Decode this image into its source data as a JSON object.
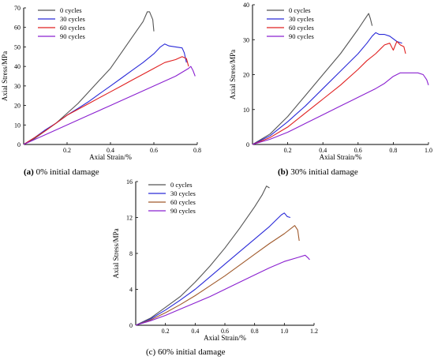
{
  "chart_data": [
    {
      "type": "line",
      "caption_letter": "(a)",
      "caption_text": " 0% initial damage",
      "xlabel": "Axial Strain/%",
      "ylabel": "Axial Stress/MPa",
      "xlim": [
        0,
        0.8
      ],
      "ylim": [
        0,
        70
      ],
      "xticks": [
        0.2,
        0.4,
        0.6,
        0.8
      ],
      "xtick_labels": [
        "0.2",
        "0.4",
        "0.6",
        "0.8"
      ],
      "yticks": [
        0,
        10,
        20,
        30,
        40,
        50,
        60,
        70
      ],
      "ytick_labels": [
        "0",
        "10",
        "20",
        "30",
        "40",
        "50",
        "60",
        "70"
      ],
      "legend_position": "top-left",
      "series": [
        {
          "name": "0 cycles",
          "color": "#555555",
          "points": [
            [
              0,
              0
            ],
            [
              0.05,
              3
            ],
            [
              0.1,
              7
            ],
            [
              0.15,
              11
            ],
            [
              0.2,
              16
            ],
            [
              0.25,
              21
            ],
            [
              0.3,
              27
            ],
            [
              0.35,
              33
            ],
            [
              0.4,
              39
            ],
            [
              0.45,
              47
            ],
            [
              0.5,
              55
            ],
            [
              0.55,
              63
            ],
            [
              0.57,
              68
            ],
            [
              0.58,
              68
            ],
            [
              0.595,
              64
            ],
            [
              0.6,
              58
            ]
          ]
        },
        {
          "name": "30 cycles",
          "color": "#2a2ad8",
          "points": [
            [
              0,
              0
            ],
            [
              0.05,
              3.5
            ],
            [
              0.1,
              7.5
            ],
            [
              0.15,
              11
            ],
            [
              0.2,
              15
            ],
            [
              0.25,
              18.5
            ],
            [
              0.3,
              22
            ],
            [
              0.35,
              26
            ],
            [
              0.4,
              30
            ],
            [
              0.45,
              34
            ],
            [
              0.5,
              38
            ],
            [
              0.55,
              42
            ],
            [
              0.6,
              46.5
            ],
            [
              0.63,
              50
            ],
            [
              0.65,
              51.5
            ],
            [
              0.67,
              50.5
            ],
            [
              0.7,
              50
            ],
            [
              0.73,
              49.5
            ],
            [
              0.74,
              47
            ],
            [
              0.75,
              42
            ]
          ]
        },
        {
          "name": "60 cycles",
          "color": "#e02020",
          "points": [
            [
              0,
              0
            ],
            [
              0.05,
              3.5
            ],
            [
              0.1,
              7
            ],
            [
              0.15,
              11
            ],
            [
              0.2,
              15
            ],
            [
              0.25,
              18
            ],
            [
              0.3,
              21
            ],
            [
              0.35,
              24
            ],
            [
              0.4,
              27
            ],
            [
              0.45,
              30
            ],
            [
              0.5,
              33
            ],
            [
              0.55,
              36
            ],
            [
              0.6,
              39
            ],
            [
              0.65,
              42
            ],
            [
              0.7,
              43.5
            ],
            [
              0.72,
              44.5
            ],
            [
              0.73,
              45
            ],
            [
              0.75,
              44
            ],
            [
              0.76,
              40
            ]
          ]
        },
        {
          "name": "90 cycles",
          "color": "#8a20d0",
          "points": [
            [
              0,
              0
            ],
            [
              0.05,
              2.5
            ],
            [
              0.1,
              5
            ],
            [
              0.2,
              10
            ],
            [
              0.3,
              15
            ],
            [
              0.4,
              20
            ],
            [
              0.5,
              25
            ],
            [
              0.6,
              30
            ],
            [
              0.7,
              35
            ],
            [
              0.76,
              39
            ],
            [
              0.77,
              40
            ],
            [
              0.78,
              38
            ],
            [
              0.79,
              35
            ]
          ]
        }
      ]
    },
    {
      "type": "line",
      "caption_letter": "(b)",
      "caption_text": " 30% initial damage",
      "xlabel": "Axial Strain/%",
      "ylabel": "Axial Stress/MPa",
      "xlim": [
        0,
        1.0
      ],
      "ylim": [
        0,
        40
      ],
      "xticks": [
        0.2,
        0.4,
        0.6,
        0.8,
        1.0
      ],
      "xtick_labels": [
        "0.2",
        "0.4",
        "0.6",
        "0.8",
        "1.0"
      ],
      "yticks": [
        0,
        10,
        20,
        30,
        40
      ],
      "ytick_labels": [
        "0",
        "10",
        "20",
        "30",
        "40"
      ],
      "legend_position": "top-left",
      "series": [
        {
          "name": "0 cycles",
          "color": "#555555",
          "points": [
            [
              0,
              0
            ],
            [
              0.1,
              3
            ],
            [
              0.2,
              8
            ],
            [
              0.3,
              14
            ],
            [
              0.4,
              20
            ],
            [
              0.5,
              26
            ],
            [
              0.6,
              33
            ],
            [
              0.64,
              36
            ],
            [
              0.66,
              37.5
            ],
            [
              0.67,
              36
            ],
            [
              0.68,
              34
            ]
          ]
        },
        {
          "name": "30 cycles",
          "color": "#2a2ad8",
          "points": [
            [
              0,
              0
            ],
            [
              0.1,
              2.5
            ],
            [
              0.2,
              6.5
            ],
            [
              0.3,
              11
            ],
            [
              0.4,
              16
            ],
            [
              0.5,
              21
            ],
            [
              0.6,
              26
            ],
            [
              0.65,
              29
            ],
            [
              0.68,
              31
            ],
            [
              0.7,
              32
            ],
            [
              0.72,
              31.5
            ],
            [
              0.75,
              31.5
            ],
            [
              0.78,
              31
            ],
            [
              0.82,
              29.5
            ],
            [
              0.85,
              29
            ]
          ]
        },
        {
          "name": "60 cycles",
          "color": "#e02020",
          "points": [
            [
              0,
              0
            ],
            [
              0.1,
              2
            ],
            [
              0.2,
              5
            ],
            [
              0.3,
              9
            ],
            [
              0.4,
              13
            ],
            [
              0.5,
              17
            ],
            [
              0.6,
              21.5
            ],
            [
              0.65,
              24
            ],
            [
              0.7,
              26
            ],
            [
              0.73,
              27.5
            ],
            [
              0.75,
              28.5
            ],
            [
              0.78,
              29
            ],
            [
              0.8,
              27
            ],
            [
              0.82,
              29.5
            ],
            [
              0.84,
              28.5
            ],
            [
              0.86,
              28
            ],
            [
              0.87,
              26
            ]
          ]
        },
        {
          "name": "90 cycles",
          "color": "#8a20d0",
          "points": [
            [
              0,
              0
            ],
            [
              0.1,
              1.5
            ],
            [
              0.2,
              3.5
            ],
            [
              0.3,
              6
            ],
            [
              0.4,
              8.5
            ],
            [
              0.5,
              11
            ],
            [
              0.6,
              13.5
            ],
            [
              0.7,
              16
            ],
            [
              0.75,
              17.5
            ],
            [
              0.8,
              19.5
            ],
            [
              0.84,
              20.5
            ],
            [
              0.88,
              20.5
            ],
            [
              0.94,
              20.5
            ],
            [
              0.97,
              20
            ],
            [
              0.99,
              18.5
            ],
            [
              1.0,
              17
            ]
          ]
        }
      ]
    },
    {
      "type": "line",
      "caption_letter": "",
      "caption_text": "(c) 60% initial damage",
      "xlabel": "Axial Strain/%",
      "ylabel": "Axial Stress/MPa",
      "xlim": [
        0,
        1.2
      ],
      "ylim": [
        0,
        16
      ],
      "xticks": [
        0.2,
        0.4,
        0.6,
        0.8,
        1.0,
        1.2
      ],
      "xtick_labels": [
        "0.2",
        "0.4",
        "0.6",
        "0.8",
        "1.0",
        "1.2"
      ],
      "yticks": [
        0,
        4,
        8,
        12,
        16
      ],
      "ytick_labels": [
        "0",
        "4",
        "8",
        "12",
        "16"
      ],
      "legend_position": "top-left",
      "series": [
        {
          "name": "0 cycles",
          "color": "#555555",
          "points": [
            [
              0,
              0
            ],
            [
              0.1,
              0.8
            ],
            [
              0.2,
              2
            ],
            [
              0.3,
              3.2
            ],
            [
              0.4,
              4.8
            ],
            [
              0.5,
              6.6
            ],
            [
              0.6,
              8.6
            ],
            [
              0.7,
              10.8
            ],
            [
              0.8,
              13.2
            ],
            [
              0.85,
              14.5
            ],
            [
              0.88,
              15.5
            ],
            [
              0.9,
              15.3
            ]
          ]
        },
        {
          "name": "30 cycles",
          "color": "#2a2ad8",
          "points": [
            [
              0,
              0
            ],
            [
              0.1,
              0.7
            ],
            [
              0.2,
              1.7
            ],
            [
              0.3,
              2.8
            ],
            [
              0.4,
              4
            ],
            [
              0.5,
              5.4
            ],
            [
              0.6,
              6.8
            ],
            [
              0.7,
              8.2
            ],
            [
              0.8,
              9.6
            ],
            [
              0.9,
              11
            ],
            [
              0.98,
              12.3
            ],
            [
              1.0,
              12.5
            ],
            [
              1.02,
              12.1
            ],
            [
              1.04,
              12
            ]
          ]
        },
        {
          "name": "60 cycles",
          "color": "#a05a2c",
          "points": [
            [
              0,
              0
            ],
            [
              0.1,
              0.6
            ],
            [
              0.2,
              1.4
            ],
            [
              0.3,
              2.3
            ],
            [
              0.4,
              3.3
            ],
            [
              0.5,
              4.4
            ],
            [
              0.6,
              5.5
            ],
            [
              0.7,
              6.7
            ],
            [
              0.8,
              7.9
            ],
            [
              0.9,
              9.1
            ],
            [
              1.0,
              10.2
            ],
            [
              1.07,
              11.1
            ],
            [
              1.09,
              10.6
            ],
            [
              1.1,
              9.4
            ]
          ]
        },
        {
          "name": "90 cycles",
          "color": "#8a20d0",
          "points": [
            [
              0,
              0
            ],
            [
              0.1,
              0.5
            ],
            [
              0.2,
              1.1
            ],
            [
              0.3,
              1.8
            ],
            [
              0.4,
              2.5
            ],
            [
              0.5,
              3.2
            ],
            [
              0.6,
              4
            ],
            [
              0.7,
              4.8
            ],
            [
              0.8,
              5.6
            ],
            [
              0.9,
              6.4
            ],
            [
              1.0,
              7.1
            ],
            [
              1.1,
              7.6
            ],
            [
              1.14,
              7.8
            ],
            [
              1.16,
              7.5
            ],
            [
              1.17,
              7.3
            ]
          ]
        }
      ]
    }
  ]
}
